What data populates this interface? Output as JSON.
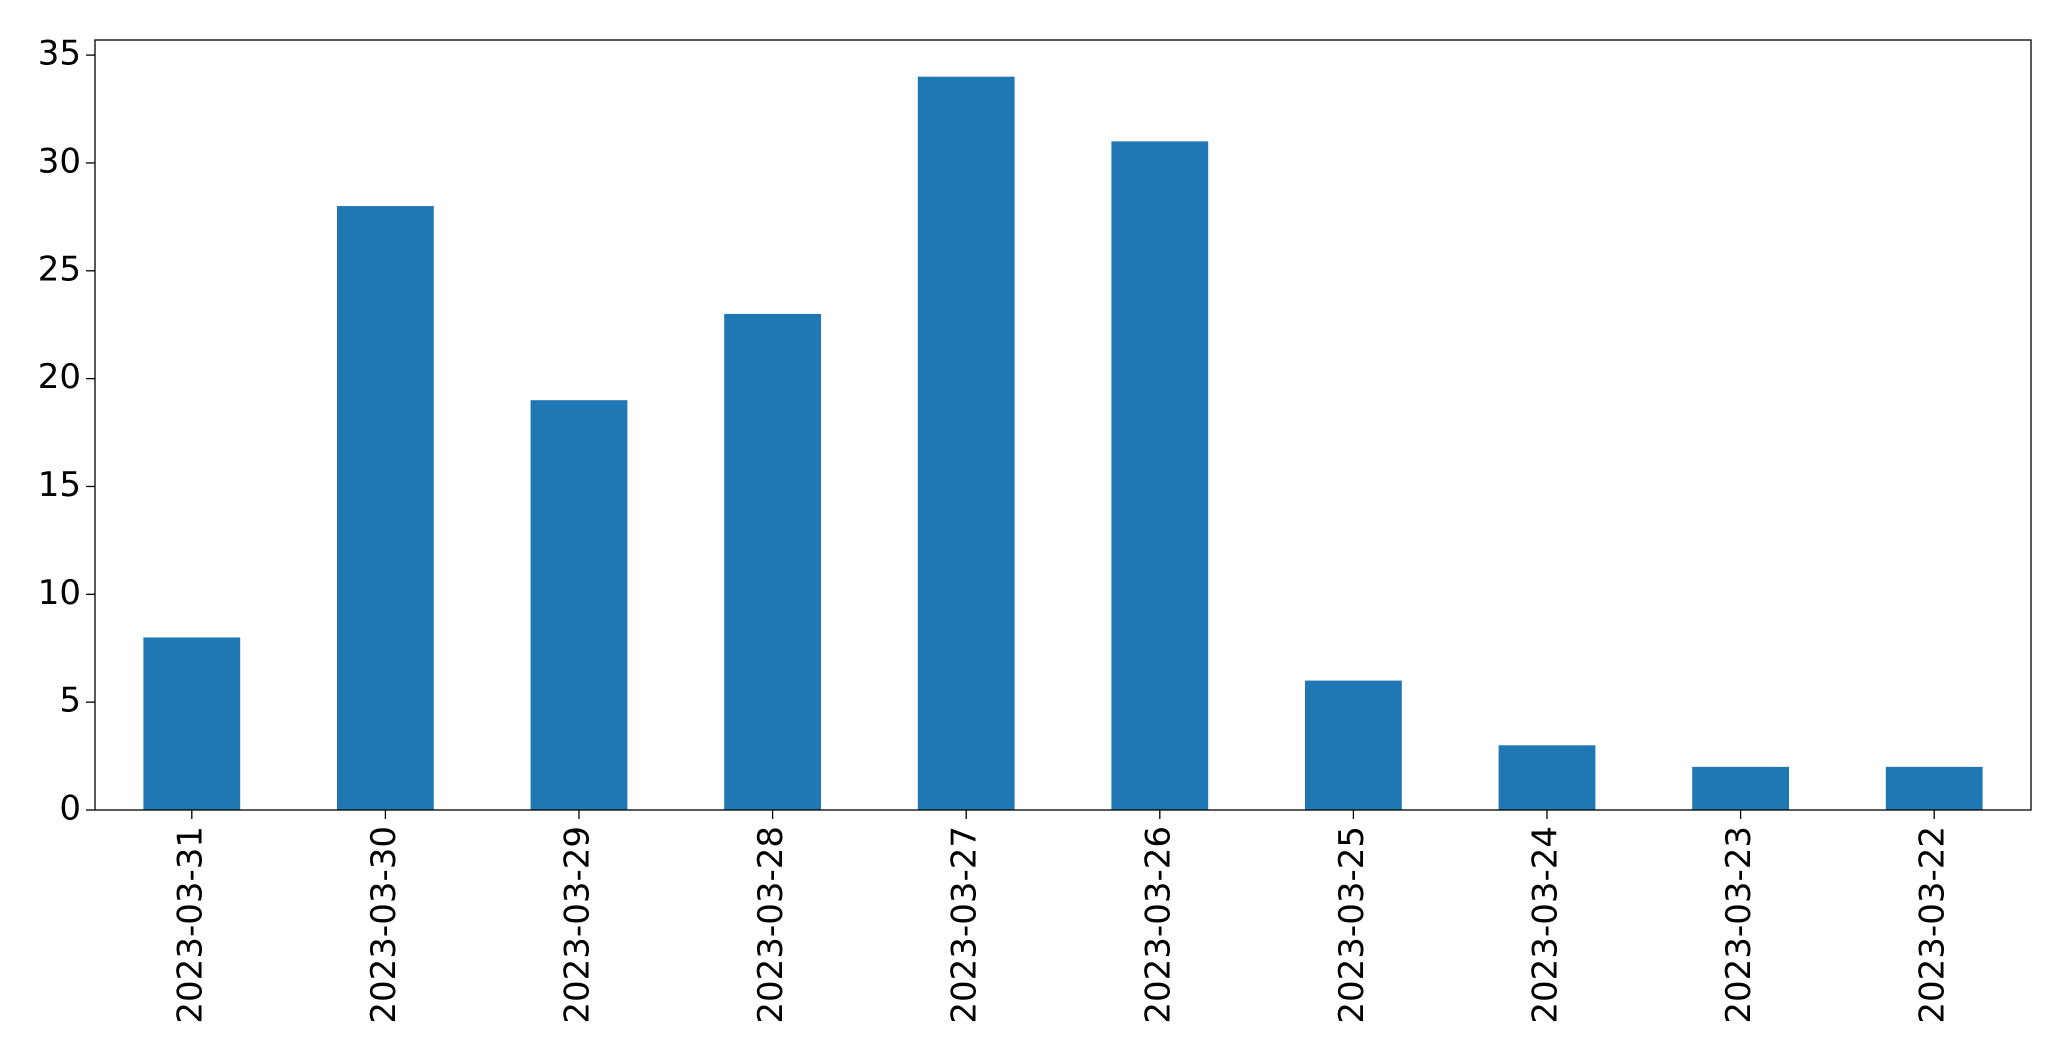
{
  "chart_data": {
    "type": "bar",
    "categories": [
      "2023-03-31",
      "2023-03-30",
      "2023-03-29",
      "2023-03-28",
      "2023-03-27",
      "2023-03-26",
      "2023-03-25",
      "2023-03-24",
      "2023-03-23",
      "2023-03-22"
    ],
    "values": [
      8,
      28,
      19,
      23,
      34,
      31,
      6,
      3,
      2,
      2
    ],
    "color": "#1f77b4",
    "ylim": [
      0,
      35.7
    ],
    "yticks": [
      0,
      5,
      10,
      15,
      20,
      25,
      30,
      35
    ],
    "grid": false
  }
}
